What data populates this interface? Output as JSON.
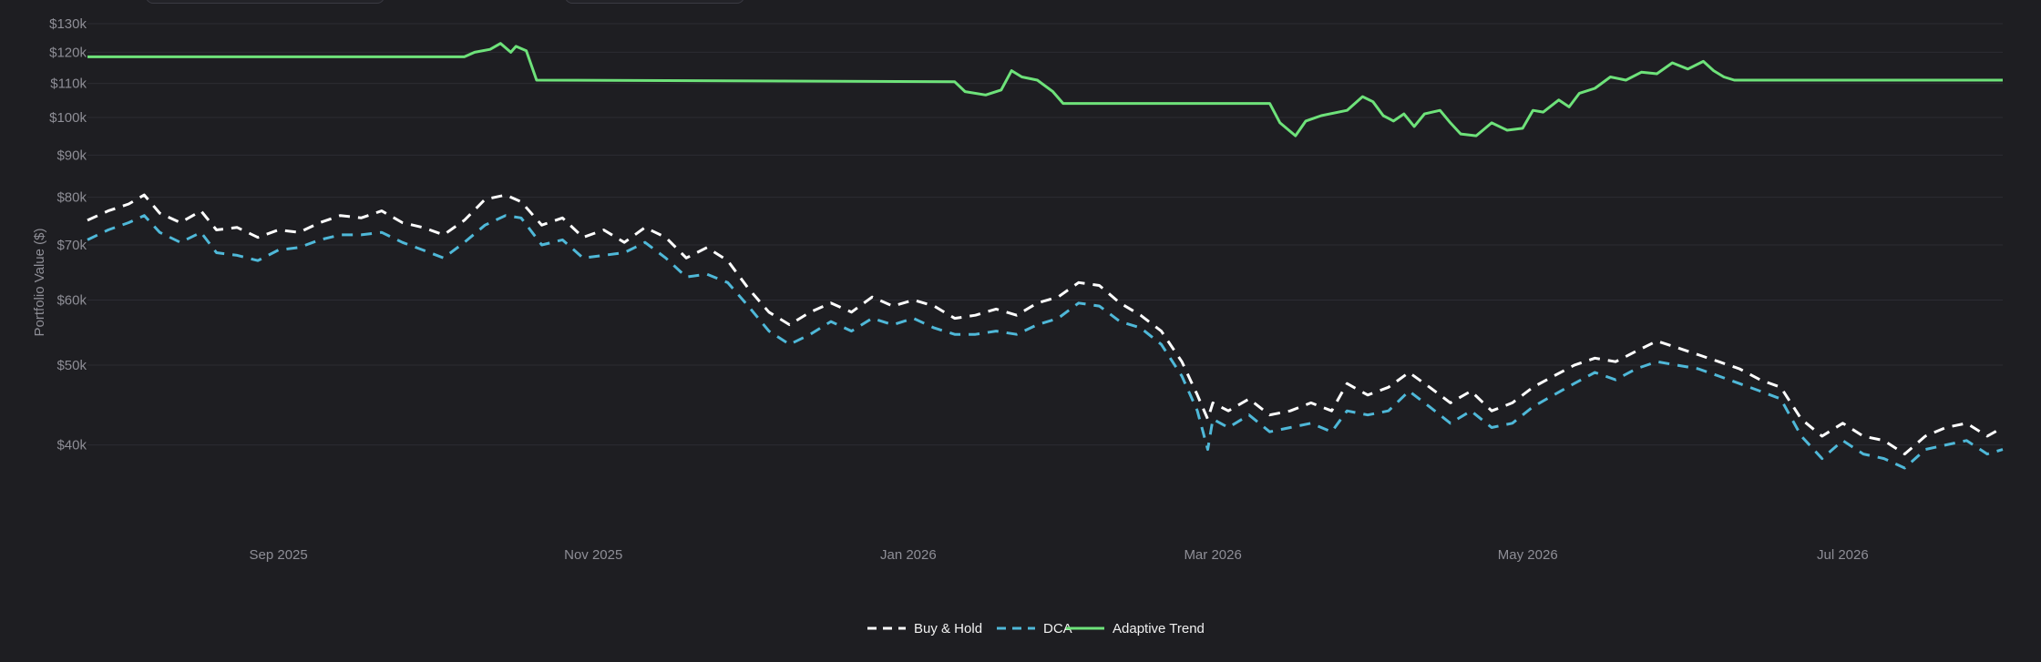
{
  "colors": {
    "background": "#1e1e22",
    "grid": "#2c2c33",
    "tick_text": "#8e8e96",
    "legend_text": "#f0f0f0"
  },
  "chart_data": {
    "type": "line",
    "ylabel": "Portfolio Value ($)",
    "yscale": "log",
    "ylim": [
      36000,
      130000
    ],
    "xlim": [
      "2025-07-26",
      "2026-08-01"
    ],
    "grid": true,
    "legend_position": "bottom-center",
    "yticks": [
      {
        "value": 40000,
        "label": "$40k"
      },
      {
        "value": 50000,
        "label": "$50k"
      },
      {
        "value": 60000,
        "label": "$60k"
      },
      {
        "value": 70000,
        "label": "$70k"
      },
      {
        "value": 80000,
        "label": "$80k"
      },
      {
        "value": 90000,
        "label": "$90k"
      },
      {
        "value": 100000,
        "label": "$100k"
      },
      {
        "value": 110000,
        "label": "$110k"
      },
      {
        "value": 120000,
        "label": "$120k"
      },
      {
        "value": 130000,
        "label": "$130k"
      }
    ],
    "xticks": [
      {
        "value": "2025-09-01",
        "label": "Sep 2025"
      },
      {
        "value": "2025-11-01",
        "label": "Nov 2025"
      },
      {
        "value": "2026-01-01",
        "label": "Jan 2026"
      },
      {
        "value": "2026-03-01",
        "label": "Mar 2026"
      },
      {
        "value": "2026-05-01",
        "label": "May 2026"
      },
      {
        "value": "2026-07-01",
        "label": "Jul 2026"
      }
    ],
    "series": [
      {
        "name": "Buy & Hold",
        "color": "#ffffff",
        "dash": "dashed",
        "points": [
          [
            "2025-07-26",
            75000
          ],
          [
            "2025-07-30",
            77000
          ],
          [
            "2025-08-03",
            78500
          ],
          [
            "2025-08-06",
            80500
          ],
          [
            "2025-08-09",
            76500
          ],
          [
            "2025-08-13",
            74500
          ],
          [
            "2025-08-17",
            77000
          ],
          [
            "2025-08-20",
            73000
          ],
          [
            "2025-08-24",
            73500
          ],
          [
            "2025-08-28",
            71500
          ],
          [
            "2025-09-01",
            73000
          ],
          [
            "2025-09-05",
            72500
          ],
          [
            "2025-09-09",
            74500
          ],
          [
            "2025-09-13",
            76000
          ],
          [
            "2025-09-17",
            75500
          ],
          [
            "2025-09-21",
            77000
          ],
          [
            "2025-09-25",
            74500
          ],
          [
            "2025-09-29",
            73500
          ],
          [
            "2025-10-03",
            72000
          ],
          [
            "2025-10-07",
            75000
          ],
          [
            "2025-10-11",
            79500
          ],
          [
            "2025-10-15",
            80500
          ],
          [
            "2025-10-18",
            79000
          ],
          [
            "2025-10-22",
            74000
          ],
          [
            "2025-10-26",
            75500
          ],
          [
            "2025-10-30",
            71500
          ],
          [
            "2025-11-03",
            73000
          ],
          [
            "2025-11-07",
            70500
          ],
          [
            "2025-11-11",
            73500
          ],
          [
            "2025-11-15",
            71500
          ],
          [
            "2025-11-19",
            67500
          ],
          [
            "2025-11-23",
            69500
          ],
          [
            "2025-11-27",
            67000
          ],
          [
            "2025-12-01",
            62000
          ],
          [
            "2025-12-05",
            58000
          ],
          [
            "2025-12-09",
            56000
          ],
          [
            "2025-12-13",
            58000
          ],
          [
            "2025-12-17",
            59500
          ],
          [
            "2025-12-21",
            58000
          ],
          [
            "2025-12-25",
            60500
          ],
          [
            "2025-12-29",
            59000
          ],
          [
            "2026-01-02",
            60000
          ],
          [
            "2026-01-06",
            59000
          ],
          [
            "2026-01-10",
            57000
          ],
          [
            "2026-01-14",
            57500
          ],
          [
            "2026-01-18",
            58500
          ],
          [
            "2026-01-22",
            57500
          ],
          [
            "2026-01-26",
            59500
          ],
          [
            "2026-01-30",
            60500
          ],
          [
            "2026-02-03",
            63000
          ],
          [
            "2026-02-07",
            62500
          ],
          [
            "2026-02-11",
            59500
          ],
          [
            "2026-02-15",
            57500
          ],
          [
            "2026-02-19",
            55000
          ],
          [
            "2026-02-23",
            50500
          ],
          [
            "2026-02-26",
            46000
          ],
          [
            "2026-02-28",
            43000
          ],
          [
            "2026-03-01",
            45000
          ],
          [
            "2026-03-04",
            44000
          ],
          [
            "2026-03-08",
            45500
          ],
          [
            "2026-03-12",
            43500
          ],
          [
            "2026-03-16",
            44000
          ],
          [
            "2026-03-20",
            45000
          ],
          [
            "2026-03-24",
            44000
          ],
          [
            "2026-03-27",
            47500
          ],
          [
            "2026-03-31",
            46000
          ],
          [
            "2026-04-04",
            47000
          ],
          [
            "2026-04-08",
            49000
          ],
          [
            "2026-04-12",
            47000
          ],
          [
            "2026-04-16",
            45000
          ],
          [
            "2026-04-20",
            46500
          ],
          [
            "2026-04-24",
            44000
          ],
          [
            "2026-04-28",
            45000
          ],
          [
            "2026-05-02",
            47000
          ],
          [
            "2026-05-06",
            48500
          ],
          [
            "2026-05-10",
            50000
          ],
          [
            "2026-05-14",
            51000
          ],
          [
            "2026-05-18",
            50500
          ],
          [
            "2026-05-22",
            52000
          ],
          [
            "2026-05-26",
            53500
          ],
          [
            "2026-05-30",
            52500
          ],
          [
            "2026-06-03",
            51500
          ],
          [
            "2026-06-07",
            50500
          ],
          [
            "2026-06-11",
            49500
          ],
          [
            "2026-06-15",
            48000
          ],
          [
            "2026-06-19",
            47000
          ],
          [
            "2026-06-23",
            43000
          ],
          [
            "2026-06-27",
            41000
          ],
          [
            "2026-07-01",
            42500
          ],
          [
            "2026-07-05",
            41000
          ],
          [
            "2026-07-09",
            40500
          ],
          [
            "2026-07-13",
            39000
          ],
          [
            "2026-07-17",
            41000
          ],
          [
            "2026-07-21",
            42000
          ],
          [
            "2026-07-25",
            42500
          ],
          [
            "2026-07-29",
            41000
          ],
          [
            "2026-08-01",
            42000
          ]
        ]
      },
      {
        "name": "DCA",
        "color": "#4fb8d8",
        "dash": "dashed",
        "points": [
          [
            "2025-07-26",
            71000
          ],
          [
            "2025-07-30",
            73000
          ],
          [
            "2025-08-03",
            74500
          ],
          [
            "2025-08-06",
            76000
          ],
          [
            "2025-08-09",
            72500
          ],
          [
            "2025-08-13",
            70500
          ],
          [
            "2025-08-17",
            72500
          ],
          [
            "2025-08-20",
            68500
          ],
          [
            "2025-08-24",
            68000
          ],
          [
            "2025-08-28",
            67000
          ],
          [
            "2025-09-01",
            69000
          ],
          [
            "2025-09-05",
            69500
          ],
          [
            "2025-09-09",
            71000
          ],
          [
            "2025-09-13",
            72000
          ],
          [
            "2025-09-17",
            72000
          ],
          [
            "2025-09-21",
            72500
          ],
          [
            "2025-09-25",
            70500
          ],
          [
            "2025-09-29",
            69000
          ],
          [
            "2025-10-03",
            67500
          ],
          [
            "2025-10-07",
            70500
          ],
          [
            "2025-10-11",
            74000
          ],
          [
            "2025-10-15",
            76000
          ],
          [
            "2025-10-18",
            75500
          ],
          [
            "2025-10-22",
            70000
          ],
          [
            "2025-10-26",
            71000
          ],
          [
            "2025-10-30",
            67500
          ],
          [
            "2025-11-03",
            68000
          ],
          [
            "2025-11-07",
            68500
          ],
          [
            "2025-11-11",
            70500
          ],
          [
            "2025-11-15",
            67500
          ],
          [
            "2025-11-19",
            64000
          ],
          [
            "2025-11-23",
            64500
          ],
          [
            "2025-11-27",
            63000
          ],
          [
            "2025-12-01",
            59000
          ],
          [
            "2025-12-05",
            55000
          ],
          [
            "2025-12-09",
            53000
          ],
          [
            "2025-12-13",
            54500
          ],
          [
            "2025-12-17",
            56500
          ],
          [
            "2025-12-21",
            55000
          ],
          [
            "2025-12-25",
            57000
          ],
          [
            "2025-12-29",
            56000
          ],
          [
            "2026-01-02",
            57000
          ],
          [
            "2026-01-06",
            55500
          ],
          [
            "2026-01-10",
            54500
          ],
          [
            "2026-01-14",
            54500
          ],
          [
            "2026-01-18",
            55000
          ],
          [
            "2026-01-22",
            54500
          ],
          [
            "2026-01-26",
            56000
          ],
          [
            "2026-01-30",
            57000
          ],
          [
            "2026-02-03",
            59500
          ],
          [
            "2026-02-07",
            59000
          ],
          [
            "2026-02-11",
            56500
          ],
          [
            "2026-02-15",
            55500
          ],
          [
            "2026-02-19",
            53000
          ],
          [
            "2026-02-23",
            48500
          ],
          [
            "2026-02-26",
            44000
          ],
          [
            "2026-02-28",
            39500
          ],
          [
            "2026-03-01",
            43000
          ],
          [
            "2026-03-04",
            42000
          ],
          [
            "2026-03-08",
            43500
          ],
          [
            "2026-03-12",
            41500
          ],
          [
            "2026-03-16",
            42000
          ],
          [
            "2026-03-20",
            42500
          ],
          [
            "2026-03-24",
            41500
          ],
          [
            "2026-03-27",
            44000
          ],
          [
            "2026-03-31",
            43500
          ],
          [
            "2026-04-04",
            44000
          ],
          [
            "2026-04-08",
            46500
          ],
          [
            "2026-04-12",
            44500
          ],
          [
            "2026-04-16",
            42500
          ],
          [
            "2026-04-20",
            44000
          ],
          [
            "2026-04-24",
            42000
          ],
          [
            "2026-04-28",
            42500
          ],
          [
            "2026-05-02",
            44500
          ],
          [
            "2026-05-06",
            46000
          ],
          [
            "2026-05-10",
            47500
          ],
          [
            "2026-05-14",
            49000
          ],
          [
            "2026-05-18",
            48000
          ],
          [
            "2026-05-22",
            49500
          ],
          [
            "2026-05-26",
            50500
          ],
          [
            "2026-05-30",
            50000
          ],
          [
            "2026-06-03",
            49500
          ],
          [
            "2026-06-07",
            48500
          ],
          [
            "2026-06-11",
            47500
          ],
          [
            "2026-06-15",
            46500
          ],
          [
            "2026-06-19",
            45500
          ],
          [
            "2026-06-23",
            41000
          ],
          [
            "2026-06-27",
            38500
          ],
          [
            "2026-07-01",
            40500
          ],
          [
            "2026-07-05",
            39000
          ],
          [
            "2026-07-09",
            38500
          ],
          [
            "2026-07-13",
            37500
          ],
          [
            "2026-07-17",
            39500
          ],
          [
            "2026-07-21",
            40000
          ],
          [
            "2026-07-25",
            40500
          ],
          [
            "2026-07-29",
            39000
          ],
          [
            "2026-08-01",
            39500
          ]
        ]
      },
      {
        "name": "Adaptive Trend",
        "color": "#6ee27a",
        "dash": "solid",
        "points": [
          [
            "2025-07-26",
            118500
          ],
          [
            "2025-10-07",
            118500
          ],
          [
            "2025-10-09",
            120000
          ],
          [
            "2025-10-12",
            121000
          ],
          [
            "2025-10-14",
            123000
          ],
          [
            "2025-10-16",
            120000
          ],
          [
            "2025-10-17",
            122000
          ],
          [
            "2025-10-19",
            120500
          ],
          [
            "2025-10-21",
            111000
          ],
          [
            "2026-01-10",
            110500
          ],
          [
            "2026-01-12",
            107500
          ],
          [
            "2026-01-16",
            106500
          ],
          [
            "2026-01-19",
            108000
          ],
          [
            "2026-01-21",
            114000
          ],
          [
            "2026-01-23",
            112000
          ],
          [
            "2026-01-26",
            111000
          ],
          [
            "2026-01-29",
            107500
          ],
          [
            "2026-01-31",
            104000
          ],
          [
            "2026-03-12",
            104000
          ],
          [
            "2026-03-14",
            98500
          ],
          [
            "2026-03-17",
            95000
          ],
          [
            "2026-03-19",
            99000
          ],
          [
            "2026-03-22",
            100500
          ],
          [
            "2026-03-27",
            102000
          ],
          [
            "2026-03-30",
            106000
          ],
          [
            "2026-04-01",
            104500
          ],
          [
            "2026-04-03",
            100500
          ],
          [
            "2026-04-05",
            99000
          ],
          [
            "2026-04-07",
            101000
          ],
          [
            "2026-04-09",
            97500
          ],
          [
            "2026-04-11",
            101000
          ],
          [
            "2026-04-14",
            102000
          ],
          [
            "2026-04-16",
            98500
          ],
          [
            "2026-04-18",
            95500
          ],
          [
            "2026-04-21",
            95000
          ],
          [
            "2026-04-24",
            98500
          ],
          [
            "2026-04-27",
            96500
          ],
          [
            "2026-04-30",
            97000
          ],
          [
            "2026-05-02",
            102000
          ],
          [
            "2026-05-04",
            101500
          ],
          [
            "2026-05-07",
            105000
          ],
          [
            "2026-05-09",
            103000
          ],
          [
            "2026-05-11",
            107000
          ],
          [
            "2026-05-14",
            108500
          ],
          [
            "2026-05-17",
            112000
          ],
          [
            "2026-05-20",
            111000
          ],
          [
            "2026-05-23",
            113500
          ],
          [
            "2026-05-26",
            113000
          ],
          [
            "2026-05-29",
            116500
          ],
          [
            "2026-06-01",
            114500
          ],
          [
            "2026-06-04",
            117000
          ],
          [
            "2026-06-06",
            114000
          ],
          [
            "2026-06-08",
            112000
          ],
          [
            "2026-06-10",
            111000
          ],
          [
            "2026-08-01",
            111000
          ]
        ]
      }
    ]
  }
}
